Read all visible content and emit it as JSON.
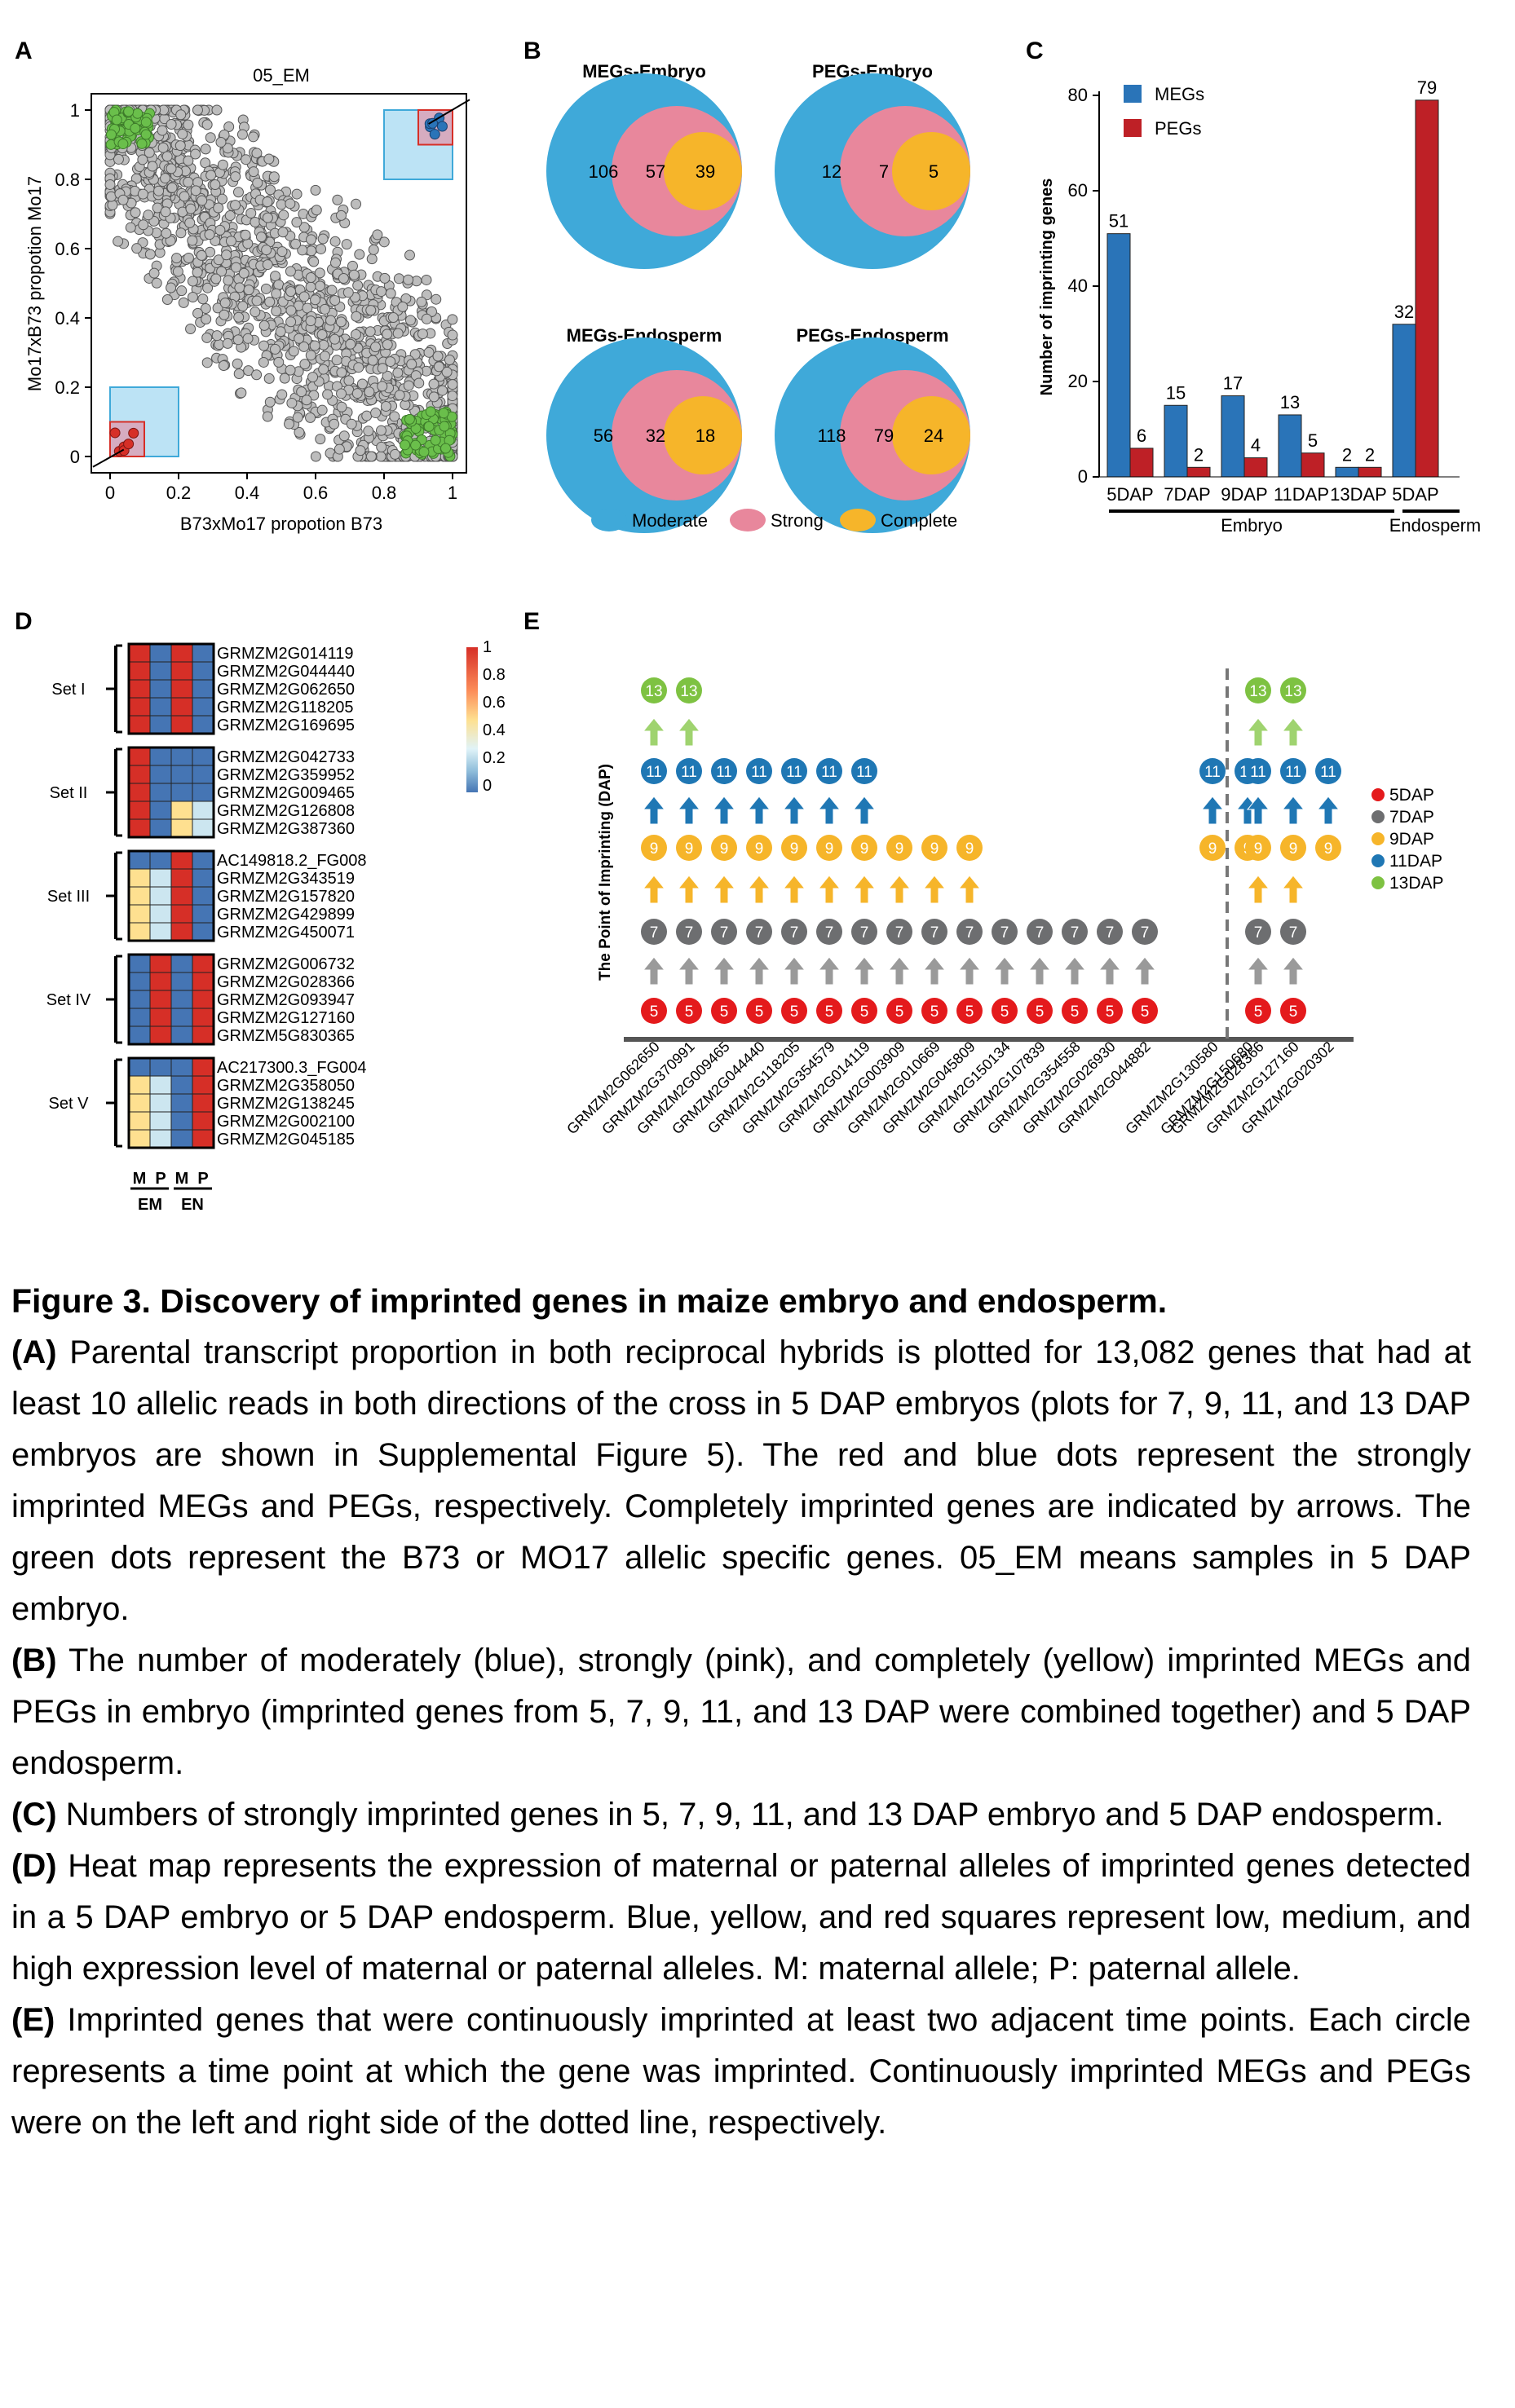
{
  "panels": {
    "A": {
      "letter": "A",
      "title": "05_EM",
      "xlabel": "B73xMo17 propotion B73",
      "ylabel": "Mo17xB73 propotion Mo17",
      "xticks": [
        "0",
        "0.2",
        "0.4",
        "0.6",
        "0.8",
        "1"
      ],
      "yticks": [
        "0",
        "0.2",
        "0.4",
        "0.6",
        "0.8",
        "1"
      ]
    },
    "B": {
      "letter": "B",
      "venns": [
        {
          "title": "MEGs-Embryo",
          "moderate": "106",
          "strong": "57",
          "complete": "39"
        },
        {
          "title": "PEGs-Embryo",
          "moderate": "12",
          "strong": "7",
          "complete": "5"
        },
        {
          "title": "MEGs-Endosperm",
          "moderate": "56",
          "strong": "32",
          "complete": "18"
        },
        {
          "title": "PEGs-Endosperm",
          "moderate": "118",
          "strong": "79",
          "complete": "24"
        }
      ],
      "legend": [
        "Moderate",
        "Strong",
        "Complete"
      ],
      "colors": {
        "moderate": "#3fa9d9",
        "strong": "#e8879c",
        "complete": "#f6b52a"
      }
    },
    "C": {
      "letter": "C",
      "group_embryo": "Embryo",
      "group_endosperm": "Endosperm"
    },
    "D": {
      "letter": "D",
      "sets": [
        {
          "label": "Set I",
          "genes": [
            "GRMZM2G014119",
            "GRMZM2G044440",
            "GRMZM2G062650",
            "GRMZM2G118205",
            "GRMZM2G169695"
          ],
          "rows": [
            [
              "r",
              "b",
              "r",
              "b"
            ],
            [
              "r",
              "b",
              "r",
              "b"
            ],
            [
              "r",
              "b",
              "r",
              "b"
            ],
            [
              "r",
              "b",
              "r",
              "b"
            ],
            [
              "r",
              "b",
              "r",
              "b"
            ]
          ]
        },
        {
          "label": "Set II",
          "genes": [
            "GRMZM2G042733",
            "GRMZM2G359952",
            "GRMZM2G009465",
            "GRMZM2G126808",
            "GRMZM2G387360"
          ],
          "rows": [
            [
              "r",
              "b",
              "b",
              "b"
            ],
            [
              "r",
              "b",
              "b",
              "b"
            ],
            [
              "r",
              "b",
              "b",
              "b"
            ],
            [
              "r",
              "b",
              "y",
              "l"
            ],
            [
              "r",
              "b",
              "y",
              "l"
            ]
          ]
        },
        {
          "label": "Set III",
          "genes": [
            "AC149818.2_FG008",
            "GRMZM2G343519",
            "GRMZM2G157820",
            "GRMZM2G429899",
            "GRMZM2G450071"
          ],
          "rows": [
            [
              "b",
              "b",
              "r",
              "b"
            ],
            [
              "y",
              "l",
              "r",
              "b"
            ],
            [
              "y",
              "l",
              "r",
              "b"
            ],
            [
              "y",
              "l",
              "r",
              "b"
            ],
            [
              "y",
              "l",
              "r",
              "b"
            ]
          ]
        },
        {
          "label": "Set IV",
          "genes": [
            "GRMZM2G006732",
            "GRMZM2G028366",
            "GRMZM2G093947",
            "GRMZM2G127160",
            "GRMZM5G830365"
          ],
          "rows": [
            [
              "b",
              "r",
              "b",
              "r"
            ],
            [
              "b",
              "r",
              "b",
              "r"
            ],
            [
              "b",
              "r",
              "b",
              "r"
            ],
            [
              "b",
              "r",
              "b",
              "r"
            ],
            [
              "b",
              "r",
              "b",
              "r"
            ]
          ]
        },
        {
          "label": "Set V",
          "genes": [
            "AC217300.3_FG004",
            "GRMZM2G358050",
            "GRMZM2G138245",
            "GRMZM2G002100",
            "GRMZM2G045185"
          ],
          "rows": [
            [
              "b",
              "b",
              "b",
              "r"
            ],
            [
              "y",
              "l",
              "b",
              "r"
            ],
            [
              "y",
              "l",
              "b",
              "r"
            ],
            [
              "y",
              "l",
              "b",
              "r"
            ],
            [
              "y",
              "l",
              "b",
              "r"
            ]
          ]
        }
      ],
      "cell_colors": {
        "r": "#d62f27",
        "b": "#4575b4",
        "y": "#fee090",
        "l": "#cce6f0"
      },
      "colorbar_ticks": [
        "1",
        "0.8",
        "0.6",
        "0.4",
        "0.2",
        "0"
      ],
      "col_labels": [
        "M",
        "P",
        "M",
        "P"
      ],
      "groups": [
        "EM",
        "EN"
      ]
    },
    "E": {
      "letter": "E",
      "ylabel": "The Point of Imprinting (DAP)",
      "legend": [
        {
          "label": "5DAP",
          "color": "#e41a1c"
        },
        {
          "label": "7DAP",
          "color": "#6d6e70"
        },
        {
          "label": "9DAP",
          "color": "#f6b52a"
        },
        {
          "label": "11DAP",
          "color": "#1f77b4"
        },
        {
          "label": "13DAP",
          "color": "#7ec242"
        }
      ],
      "genes_left": [
        {
          "name": "GRMZM2G062650",
          "points": [
            "5",
            "7",
            "9",
            "11",
            "13"
          ]
        },
        {
          "name": "GRMZM2G370991",
          "points": [
            "5",
            "7",
            "9",
            "11",
            "13"
          ]
        },
        {
          "name": "GRMZM2G009465",
          "points": [
            "5",
            "7",
            "9",
            "11"
          ]
        },
        {
          "name": "GRMZM2G044440",
          "points": [
            "5",
            "7",
            "9",
            "11"
          ]
        },
        {
          "name": "GRMZM2G118205",
          "points": [
            "5",
            "7",
            "9",
            "11"
          ]
        },
        {
          "name": "GRMZM2G354579",
          "points": [
            "5",
            "7",
            "9",
            "11"
          ]
        },
        {
          "name": "GRMZM2G014119",
          "points": [
            "5",
            "7",
            "9",
            "11"
          ]
        },
        {
          "name": "GRMZM2G003909",
          "points": [
            "5",
            "7",
            "9"
          ]
        },
        {
          "name": "GRMZM2G010669",
          "points": [
            "5",
            "7",
            "9"
          ]
        },
        {
          "name": "GRMZM2G045809",
          "points": [
            "5",
            "7",
            "9"
          ]
        },
        {
          "name": "GRMZM2G150134",
          "points": [
            "5",
            "7"
          ]
        },
        {
          "name": "GRMZM2G107839",
          "points": [
            "5",
            "7"
          ]
        },
        {
          "name": "GRMZM2G354558",
          "points": [
            "5",
            "7"
          ]
        },
        {
          "name": "GRMZM2G026930",
          "points": [
            "5",
            "7"
          ]
        },
        {
          "name": "GRMZM2G044882",
          "points": [
            "5",
            "7"
          ]
        },
        {
          "name": "GRMZM2G130580",
          "points": [
            "9",
            "11"
          ]
        },
        {
          "name": "GRMZM2G150680",
          "points": [
            "9",
            "11"
          ]
        }
      ],
      "genes_right": [
        {
          "name": "GRMZM2G028366",
          "points": [
            "5",
            "7",
            "9",
            "11",
            "13"
          ]
        },
        {
          "name": "GRMZM2G127160",
          "points": [
            "5",
            "7",
            "9",
            "11",
            "13"
          ]
        },
        {
          "name": "GRMZM2G020302",
          "points": [
            "9",
            "11"
          ]
        }
      ]
    }
  },
  "chart_data": {
    "type": "bar",
    "categories": [
      "5DAP",
      "7DAP",
      "9DAP",
      "11DAP",
      "13DAP",
      "5DAP"
    ],
    "series": [
      {
        "name": "MEGs",
        "values": [
          51,
          15,
          17,
          13,
          2,
          32
        ],
        "color": "#2a74b8"
      },
      {
        "name": "PEGs",
        "values": [
          6,
          2,
          4,
          5,
          2,
          79
        ],
        "color": "#be2026"
      }
    ],
    "ylabel": "Number of imprinting genes",
    "ylim": [
      0,
      80
    ],
    "yticks": [
      0,
      20,
      40,
      60,
      80
    ],
    "legend": "top-left"
  },
  "caption": {
    "title": "Figure 3. Discovery of imprinted genes in maize embryo and endosperm.",
    "paragraphs": [
      {
        "label": "(A)",
        "text": " Parental transcript proportion in both reciprocal hybrids is plotted for 13,082 genes that had at least 10 allelic reads in both directions of the cross in 5 DAP embryos (plots for 7, 9, 11, and 13 DAP embryos are shown in Supplemental Figure 5). The red and blue dots represent the strongly imprinted MEGs and PEGs, respectively. Completely imprinted genes are indicated by arrows. The green dots represent the B73 or MO17 allelic specific genes. 05_EM means samples in 5 DAP embryo."
      },
      {
        "label": "(B)",
        "text": " The number of moderately (blue), strongly (pink), and completely (yellow) imprinted MEGs and PEGs in embryo (imprinted genes from 5, 7, 9, 11, and 13 DAP were combined together) and 5 DAP endosperm."
      },
      {
        "label": "(C)",
        "text": " Numbers of strongly imprinted genes in 5, 7, 9, 11, and 13 DAP embryo and 5 DAP endosperm."
      },
      {
        "label": "(D)",
        "text": " Heat map represents the expression of maternal or paternal alleles of imprinted genes detected in a 5 DAP embryo or 5 DAP endosperm. Blue, yellow, and red squares represent low, medium, and high expression level of maternal or paternal alleles. M: maternal allele; P: paternal allele."
      },
      {
        "label": "(E)",
        "text": " Imprinted genes that were continuously imprinted at least two adjacent time points. Each circle represents a time point at which the gene was imprinted. Continuously imprinted MEGs and PEGs were on the left and right side of the dotted line, respectively."
      }
    ]
  }
}
